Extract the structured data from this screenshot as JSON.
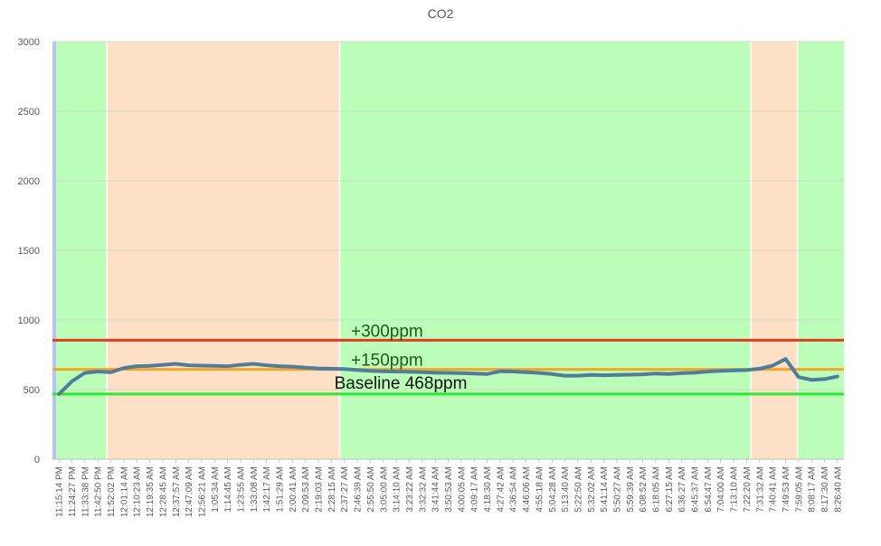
{
  "chart_data": {
    "type": "line",
    "title": "CO2",
    "xlabel": "",
    "ylabel": "",
    "ylim": [
      0,
      3000
    ],
    "yticks": [
      0,
      500,
      1000,
      1500,
      2000,
      2500,
      3000
    ],
    "grid": true,
    "legend": "none",
    "categories": [
      "11:15:14 PM",
      "11:24:27 PM",
      "11:33:38 PM",
      "11:42:50 PM",
      "11:52:02 PM",
      "12:01:14 AM",
      "12:10:23 AM",
      "12:19:35 AM",
      "12:28:45 AM",
      "12:37:57 AM",
      "12:47:09 AM",
      "12:56:21 AM",
      "1:05:34 AM",
      "1:14:45 AM",
      "1:23:55 AM",
      "1:33:08 AM",
      "1:42:17 AM",
      "1:51:29 AM",
      "2:00:41 AM",
      "2:09:53 AM",
      "2:19:03 AM",
      "2:28:15 AM",
      "2:37:27 AM",
      "2:46:39 AM",
      "2:55:50 AM",
      "3:05:00 AM",
      "3:14:10 AM",
      "3:23:22 AM",
      "3:32:32 AM",
      "3:41:44 AM",
      "3:50:53 AM",
      "4:00:05 AM",
      "4:09:17 AM",
      "4:18:30 AM",
      "4:27:42 AM",
      "4:36:54 AM",
      "4:46:06 AM",
      "4:55:18 AM",
      "5:04:28 AM",
      "5:13:40 AM",
      "5:22:50 AM",
      "5:32:02 AM",
      "5:41:14 AM",
      "5:50:27 AM",
      "5:59:39 AM",
      "6:08:52 AM",
      "6:18:05 AM",
      "6:27:15 AM",
      "6:36:27 AM",
      "6:45:37 AM",
      "6:54:47 AM",
      "7:04:00 AM",
      "7:13:10 AM",
      "7:22:20 AM",
      "7:31:32 AM",
      "7:40:41 AM",
      "7:49:53 AM",
      "7:59:05 AM",
      "8:08:17 AM",
      "8:17:30 AM",
      "8:26:40 AM"
    ],
    "series": [
      {
        "color": "#4f7d9a",
        "values": [
          468,
          560,
          620,
          630,
          625,
          655,
          668,
          670,
          678,
          685,
          675,
          672,
          670,
          668,
          678,
          685,
          675,
          668,
          665,
          658,
          652,
          650,
          648,
          640,
          635,
          632,
          630,
          628,
          625,
          622,
          620,
          618,
          615,
          612,
          632,
          630,
          625,
          620,
          612,
          600,
          600,
          605,
          603,
          605,
          607,
          610,
          615,
          612,
          618,
          622,
          630,
          635,
          638,
          640,
          650,
          672,
          720,
          590,
          570,
          575,
          595
        ]
      }
    ],
    "reference_lines": [
      {
        "label": "+300ppm",
        "value": 855,
        "color": "#e03c1e"
      },
      {
        "label": "+150ppm",
        "value": 645,
        "color": "#f5a623"
      },
      {
        "label": "Baseline 468ppm",
        "value": 468,
        "color": "#2ee82e"
      }
    ],
    "background_bands": [
      {
        "from_index": 0,
        "to_index": 7,
        "color": "#bcfdb9"
      },
      {
        "from_index": 7,
        "to_index": 37,
        "color": "#fde0c5"
      },
      {
        "from_index": 37,
        "to_index": 90,
        "color": "#bcfdb9"
      },
      {
        "from_index": 90,
        "to_index": 96,
        "color": "#fde0c5"
      },
      {
        "from_index": 96,
        "to_index": 102,
        "color": "#bcfdb9"
      }
    ],
    "band_count": 102
  }
}
